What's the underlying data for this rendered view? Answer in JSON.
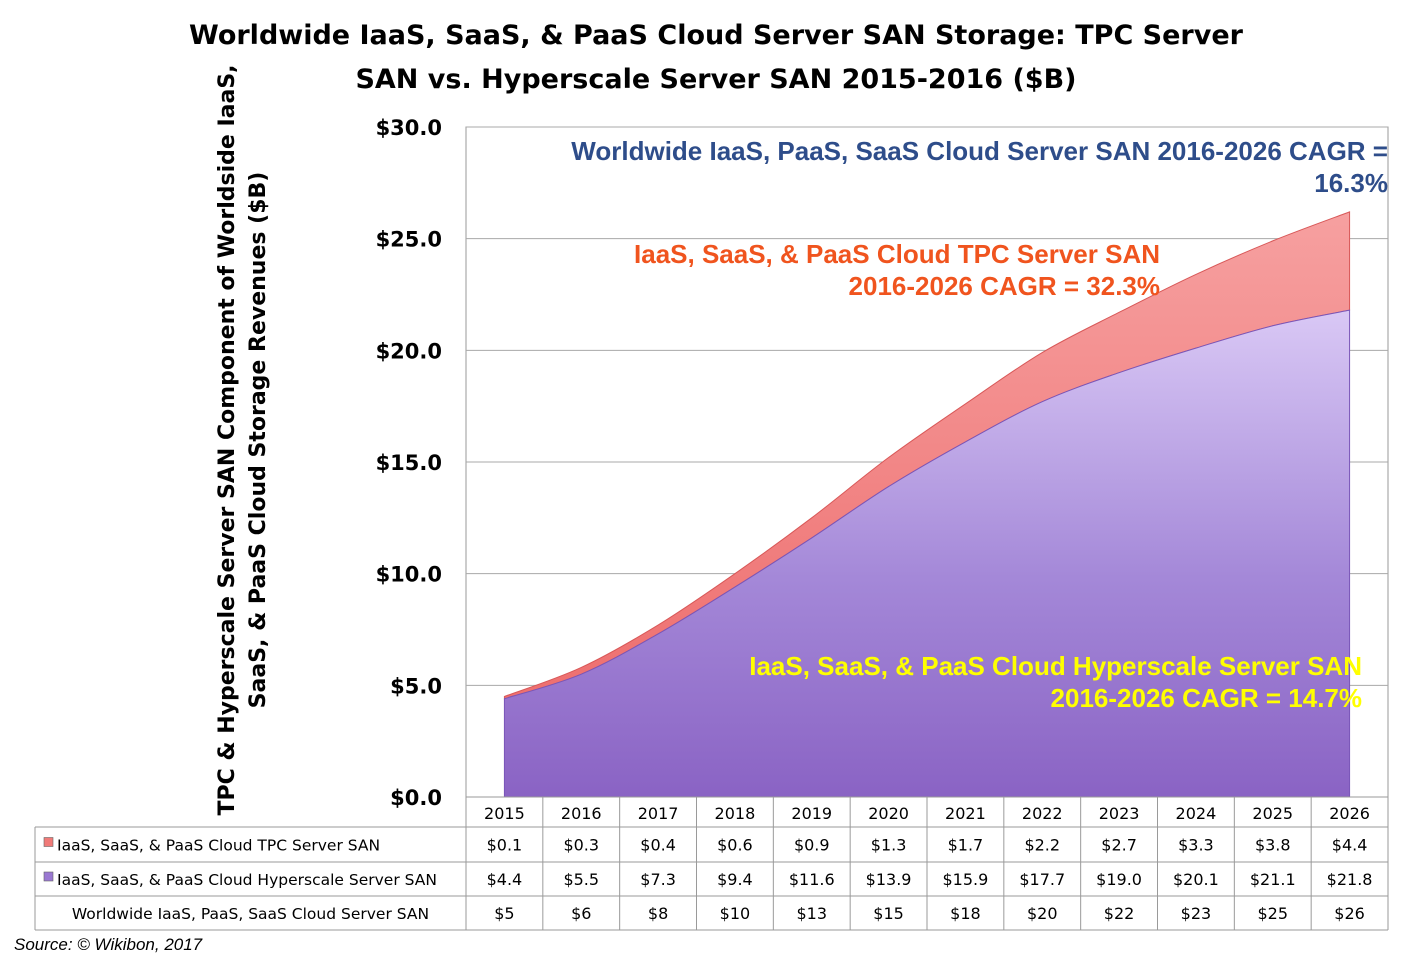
{
  "chart_data": {
    "type": "area",
    "title_lines": [
      "Worldwide IaaS, SaaS, & PaaS Cloud Server SAN Storage: TPC Server",
      "SAN vs. Hyperscale Server SAN 2015-2016 ($B)"
    ],
    "ylabel_lines": [
      "TPC & Hyperscale Server SAN Component of Worldside IaaS,",
      "SaaS, & PaaS Cloud Storage Revenues ($B)"
    ],
    "ylim": [
      0,
      30
    ],
    "y_ticks": [
      "$0.0",
      "$5.0",
      "$10.0",
      "$15.0",
      "$20.0",
      "$25.0",
      "$30.0"
    ],
    "grid": true,
    "stacked": true,
    "categories": [
      "2015",
      "2016",
      "2017",
      "2018",
      "2019",
      "2020",
      "2021",
      "2022",
      "2023",
      "2024",
      "2025",
      "2026"
    ],
    "series": [
      {
        "name": "IaaS, SaaS, & PaaS Cloud TPC Server SAN",
        "values": [
          0.1,
          0.3,
          0.4,
          0.6,
          0.9,
          1.3,
          1.7,
          2.2,
          2.7,
          3.3,
          3.8,
          4.4
        ],
        "labels": [
          "$0.1",
          "$0.3",
          "$0.4",
          "$0.6",
          "$0.9",
          "$1.3",
          "$1.7",
          "$2.2",
          "$2.7",
          "$3.3",
          "$3.8",
          "$4.4"
        ],
        "color": "#f07a78"
      },
      {
        "name": "IaaS, SaaS, & PaaS Cloud Hyperscale Server SAN",
        "values": [
          4.4,
          5.5,
          7.3,
          9.4,
          11.6,
          13.9,
          15.9,
          17.7,
          19.0,
          20.1,
          21.1,
          21.8
        ],
        "labels": [
          "$4.4",
          "$5.5",
          "$7.3",
          "$9.4",
          "$11.6",
          "$13.9",
          "$15.9",
          "$17.7",
          "$19.0",
          "$20.1",
          "$21.1",
          "$21.8"
        ],
        "color": "#9a78d2"
      },
      {
        "name": "Worldwide IaaS, PaaS, SaaS Cloud Server SAN",
        "values": [
          5,
          6,
          8,
          10,
          13,
          15,
          18,
          20,
          22,
          23,
          25,
          26
        ],
        "labels": [
          "$5",
          "$6",
          "$8",
          "$10",
          "$13",
          "$15",
          "$18",
          "$20",
          "$22",
          "$23",
          "$25",
          "$26"
        ]
      }
    ],
    "annotations": [
      {
        "lines": [
          "Worldwide IaaS, PaaS, SaaS Cloud Server SAN 2016-2026 CAGR =",
          "16.3%"
        ],
        "color": "#2e4d8a"
      },
      {
        "lines": [
          "IaaS, SaaS, & PaaS Cloud TPC Server SAN",
          "2016-2026 CAGR = 32.3%"
        ],
        "color": "#f0541e"
      },
      {
        "lines": [
          "IaaS, SaaS, & PaaS Cloud Hyperscale Server SAN",
          "2016-2026 CAGR = 14.7%"
        ],
        "color": "#ffff00"
      }
    ],
    "source": "Source: © Wikibon, 2017"
  }
}
